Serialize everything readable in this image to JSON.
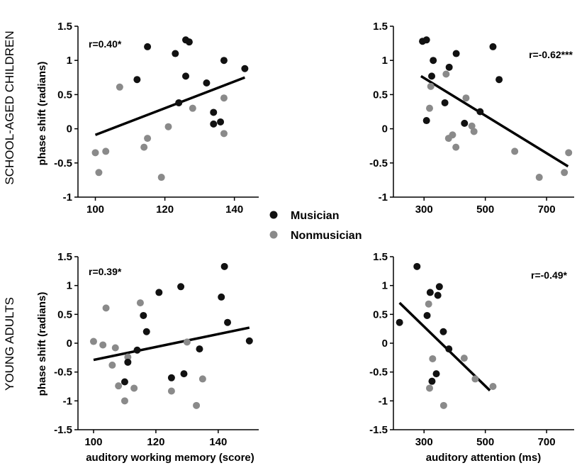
{
  "figure": {
    "row_labels": [
      "SCHOOL-AGED CHILDREN",
      "YOUNG ADULTS"
    ],
    "ylabel": "phase shift (radians)",
    "xlabels": [
      "auditory working memory (score)",
      "auditory attention (ms)"
    ],
    "legend": [
      {
        "label": "Musician",
        "color": "#111111"
      },
      {
        "label": "Nonmusician",
        "color": "#8a8a8a"
      }
    ]
  },
  "chart_data": [
    {
      "type": "scatter",
      "annotation": "r=0.40*",
      "xlim": [
        95,
        147
      ],
      "ylim": [
        -1,
        1.5
      ],
      "xticks": [
        100,
        120,
        140
      ],
      "yticks": [
        -1,
        -0.5,
        0,
        0.5,
        1,
        1.5
      ],
      "series": [
        {
          "name": "Musician",
          "color": "#111111",
          "points": [
            [
              112,
              0.72
            ],
            [
              115,
              1.2
            ],
            [
              123,
              1.1
            ],
            [
              124,
              0.38
            ],
            [
              126,
              1.3
            ],
            [
              127,
              1.27
            ],
            [
              126,
              0.77
            ],
            [
              132,
              0.67
            ],
            [
              134,
              0.24
            ],
            [
              134,
              0.07
            ],
            [
              136,
              0.1
            ],
            [
              137,
              1.0
            ],
            [
              143,
              0.88
            ]
          ]
        },
        {
          "name": "Nonmusician",
          "color": "#8a8a8a",
          "points": [
            [
              100,
              -0.35
            ],
            [
              101,
              -0.64
            ],
            [
              103,
              -0.33
            ],
            [
              107,
              0.61
            ],
            [
              114,
              -0.27
            ],
            [
              115,
              -0.14
            ],
            [
              119,
              -0.71
            ],
            [
              121,
              0.03
            ],
            [
              128,
              0.3
            ],
            [
              137,
              0.45
            ],
            [
              137,
              -0.07
            ]
          ]
        }
      ],
      "fit": [
        [
          100,
          -0.09
        ],
        [
          143,
          0.75
        ]
      ]
    },
    {
      "type": "scatter",
      "annotation": "r=-0.62***",
      "xlim": [
        200,
        790
      ],
      "ylim": [
        -1,
        1.5
      ],
      "xticks": [
        300,
        500,
        700
      ],
      "yticks": [
        -1,
        -0.5,
        0,
        0.5,
        1,
        1.5
      ],
      "series": [
        {
          "name": "Musician",
          "color": "#111111",
          "points": [
            [
              295,
              1.28
            ],
            [
              308,
              1.3
            ],
            [
              308,
              0.12
            ],
            [
              325,
              0.77
            ],
            [
              330,
              1.0
            ],
            [
              368,
              0.38
            ],
            [
              382,
              0.9
            ],
            [
              405,
              1.1
            ],
            [
              432,
              0.08
            ],
            [
              483,
              0.25
            ],
            [
              525,
              1.2
            ],
            [
              545,
              0.72
            ]
          ]
        },
        {
          "name": "Nonmusician",
          "color": "#8a8a8a",
          "points": [
            [
              318,
              0.3
            ],
            [
              322,
              0.62
            ],
            [
              372,
              0.8
            ],
            [
              380,
              -0.14
            ],
            [
              393,
              -0.09
            ],
            [
              404,
              -0.27
            ],
            [
              437,
              0.45
            ],
            [
              456,
              0.04
            ],
            [
              463,
              -0.04
            ],
            [
              596,
              -0.33
            ],
            [
              676,
              -0.71
            ],
            [
              758,
              -0.64
            ],
            [
              772,
              -0.35
            ]
          ]
        }
      ],
      "fit": [
        [
          290,
          0.77
        ],
        [
          770,
          -0.55
        ]
      ]
    },
    {
      "type": "scatter",
      "annotation": "r=0.39*",
      "xlim": [
        95,
        153
      ],
      "ylim": [
        -1.5,
        1.5
      ],
      "xticks": [
        100,
        120,
        140
      ],
      "yticks": [
        -1.5,
        -1,
        -0.5,
        0,
        0.5,
        1,
        1.5
      ],
      "series": [
        {
          "name": "Musician",
          "color": "#111111",
          "points": [
            [
              110,
              -0.67
            ],
            [
              111,
              -0.33
            ],
            [
              114,
              -0.12
            ],
            [
              116,
              0.48
            ],
            [
              117,
              0.2
            ],
            [
              121,
              0.88
            ],
            [
              125,
              -0.6
            ],
            [
              128,
              0.98
            ],
            [
              129,
              -0.53
            ],
            [
              134,
              -0.1
            ],
            [
              141,
              0.8
            ],
            [
              142,
              1.33
            ],
            [
              143,
              0.36
            ],
            [
              150,
              0.04
            ]
          ]
        },
        {
          "name": "Nonmusician",
          "color": "#8a8a8a",
          "points": [
            [
              100,
              0.03
            ],
            [
              103,
              -0.03
            ],
            [
              104,
              0.61
            ],
            [
              106,
              -0.38
            ],
            [
              107,
              -0.08
            ],
            [
              108,
              -0.74
            ],
            [
              110,
              -1.0
            ],
            [
              111,
              -0.24
            ],
            [
              113,
              -0.78
            ],
            [
              115,
              0.7
            ],
            [
              125,
              -0.83
            ],
            [
              130,
              0.02
            ],
            [
              133,
              -1.08
            ],
            [
              135,
              -0.62
            ]
          ]
        }
      ],
      "fit": [
        [
          100,
          -0.29
        ],
        [
          150,
          0.27
        ]
      ]
    },
    {
      "type": "scatter",
      "annotation": "r=-0.49*",
      "xlim": [
        200,
        790
      ],
      "ylim": [
        -1.5,
        1.5
      ],
      "xticks": [
        300,
        500,
        700
      ],
      "yticks": [
        -1.5,
        -1,
        -0.5,
        0,
        0.5,
        1,
        1.5
      ],
      "series": [
        {
          "name": "Musician",
          "color": "#111111",
          "points": [
            [
              220,
              0.36
            ],
            [
              277,
              1.33
            ],
            [
              310,
              0.48
            ],
            [
              320,
              0.88
            ],
            [
              326,
              -0.66
            ],
            [
              340,
              -0.53
            ],
            [
              345,
              0.83
            ],
            [
              350,
              0.98
            ],
            [
              363,
              0.2
            ],
            [
              381,
              -0.1
            ]
          ]
        },
        {
          "name": "Nonmusician",
          "color": "#8a8a8a",
          "points": [
            [
              315,
              0.68
            ],
            [
              318,
              -0.78
            ],
            [
              328,
              -0.27
            ],
            [
              364,
              -1.08
            ],
            [
              431,
              -0.26
            ],
            [
              467,
              -0.62
            ],
            [
              525,
              -0.75
            ]
          ]
        }
      ],
      "fit": [
        [
          220,
          0.7
        ],
        [
          515,
          -0.82
        ]
      ]
    }
  ]
}
